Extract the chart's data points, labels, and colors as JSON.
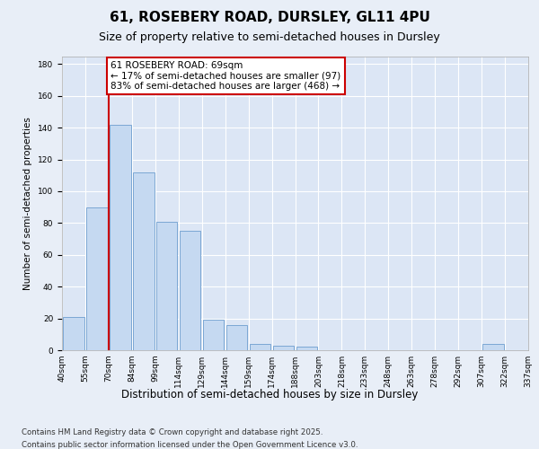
{
  "title1": "61, ROSEBERY ROAD, DURSLEY, GL11 4PU",
  "title2": "Size of property relative to semi-detached houses in Dursley",
  "xlabel": "Distribution of semi-detached houses by size in Dursley",
  "ylabel": "Number of semi-detached properties",
  "bin_labels": [
    "40sqm",
    "55sqm",
    "70sqm",
    "84sqm",
    "99sqm",
    "114sqm",
    "129sqm",
    "144sqm",
    "159sqm",
    "174sqm",
    "188sqm",
    "203sqm",
    "218sqm",
    "233sqm",
    "248sqm",
    "263sqm",
    "278sqm",
    "292sqm",
    "307sqm",
    "322sqm",
    "337sqm"
  ],
  "bar_values": [
    21,
    90,
    142,
    112,
    81,
    75,
    19,
    16,
    4,
    3,
    2,
    0,
    0,
    0,
    0,
    0,
    0,
    0,
    4,
    0
  ],
  "bar_color": "#c5d9f1",
  "bar_edge_color": "#7ba7d4",
  "annotation_text": "61 ROSEBERY ROAD: 69sqm\n← 17% of semi-detached houses are smaller (97)\n83% of semi-detached houses are larger (468) →",
  "ylim": [
    0,
    185
  ],
  "yticks": [
    0,
    20,
    40,
    60,
    80,
    100,
    120,
    140,
    160,
    180
  ],
  "footer1": "Contains HM Land Registry data © Crown copyright and database right 2025.",
  "footer2": "Contains public sector information licensed under the Open Government Licence v3.0.",
  "bg_color": "#e8eef7",
  "plot_bg_color": "#dce6f5",
  "grid_color": "#ffffff",
  "line_color": "#cc0000"
}
